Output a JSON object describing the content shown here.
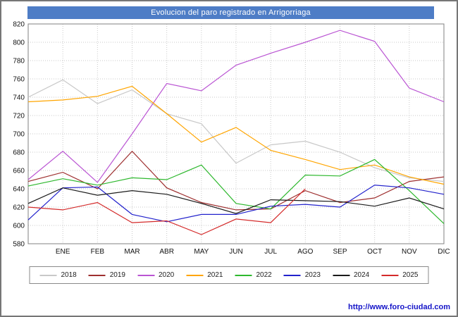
{
  "footer": {
    "url": "http://www.foro-ciudad.com"
  },
  "chart_data": {
    "type": "line",
    "title": "Evolucion del paro registrado en Arrigorriaga",
    "categories": [
      "ENE",
      "FEB",
      "MAR",
      "ABR",
      "MAY",
      "JUN",
      "JUL",
      "AGO",
      "SEP",
      "OCT",
      "NOV",
      "DIC"
    ],
    "ylim": [
      580,
      820
    ],
    "yticks": [
      580,
      600,
      620,
      640,
      660,
      680,
      700,
      720,
      740,
      760,
      780,
      800,
      820
    ],
    "grid": true,
    "grid_style": "dotted",
    "legend_position": "bottom",
    "series": [
      {
        "name": "2018",
        "color": "#c8c8c8",
        "start": 740,
        "values": [
          759,
          733,
          748,
          722,
          711,
          668,
          688,
          692,
          680,
          663,
          652,
          648
        ]
      },
      {
        "name": "2019",
        "color": "#9e2f2f",
        "start": 648,
        "values": [
          658,
          640,
          681,
          641,
          625,
          617,
          618,
          638,
          625,
          630,
          648,
          653
        ]
      },
      {
        "name": "2020",
        "color": "#ba55d3",
        "start": 650,
        "values": [
          681,
          647,
          700,
          755,
          747,
          775,
          788,
          800,
          813,
          801,
          750,
          735
        ]
      },
      {
        "name": "2021",
        "color": "#ffa500",
        "start": 735,
        "values": [
          737,
          741,
          752,
          722,
          691,
          707,
          682,
          672,
          661,
          666,
          653,
          645
        ]
      },
      {
        "name": "2022",
        "color": "#2eb82e",
        "start": 643,
        "values": [
          651,
          644,
          652,
          650,
          666,
          624,
          618,
          655,
          654,
          672,
          638,
          602
        ]
      },
      {
        "name": "2023",
        "color": "#2222cc",
        "start": 606,
        "values": [
          641,
          642,
          612,
          604,
          612,
          612,
          621,
          623,
          620,
          644,
          641,
          634
        ]
      },
      {
        "name": "2024",
        "color": "#1a1a1a",
        "start": 624,
        "values": [
          641,
          633,
          638,
          634,
          624,
          613,
          628,
          627,
          626,
          621,
          630,
          618
        ]
      },
      {
        "name": "2025",
        "color": "#d42a2a",
        "start": 620,
        "values": [
          617,
          625,
          603,
          605,
          590,
          607,
          603,
          640
        ]
      }
    ]
  }
}
